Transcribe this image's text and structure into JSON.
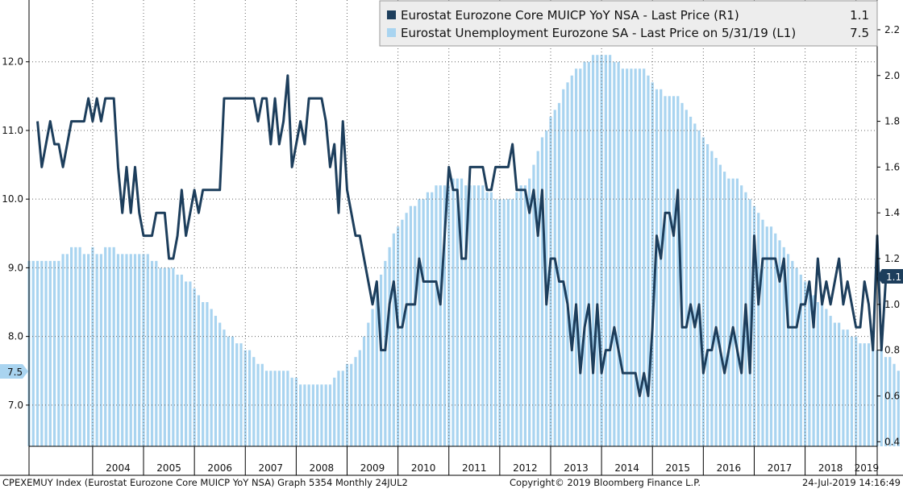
{
  "chart_data": {
    "type": "line+bar",
    "x_start": "2002-10",
    "x_end": "2019-06",
    "series": [
      {
        "name": "Eurostat Eurozone Core MUICP YoY NSA - Last Price (R1)",
        "type": "line",
        "axis": "right",
        "last_value": "1.1",
        "color": "#1d3e5c",
        "start": "2002-12",
        "values": [
          1.8,
          1.6,
          1.7,
          1.8,
          1.7,
          1.7,
          1.6,
          1.7,
          1.8,
          1.8,
          1.8,
          1.8,
          1.9,
          1.8,
          1.9,
          1.8,
          1.9,
          1.9,
          1.9,
          1.6,
          1.4,
          1.6,
          1.4,
          1.6,
          1.4,
          1.3,
          1.3,
          1.3,
          1.4,
          1.4,
          1.4,
          1.2,
          1.2,
          1.3,
          1.5,
          1.3,
          1.4,
          1.5,
          1.4,
          1.5,
          1.5,
          1.5,
          1.5,
          1.5,
          1.9,
          1.9,
          1.9,
          1.9,
          1.9,
          1.9,
          1.9,
          1.9,
          1.8,
          1.9,
          1.9,
          1.7,
          1.9,
          1.7,
          1.8,
          2.0,
          1.6,
          1.7,
          1.8,
          1.7,
          1.9,
          1.9,
          1.9,
          1.9,
          1.8,
          1.6,
          1.7,
          1.4,
          1.8,
          1.5,
          1.4,
          1.3,
          1.3,
          1.2,
          1.1,
          1.0,
          1.1,
          0.8,
          0.8,
          1.0,
          1.1,
          0.9,
          0.9,
          1.0,
          1.0,
          1.0,
          1.2,
          1.1,
          1.1,
          1.1,
          1.1,
          1.0,
          1.3,
          1.6,
          1.5,
          1.5,
          1.2,
          1.2,
          1.6,
          1.6,
          1.6,
          1.6,
          1.5,
          1.5,
          1.6,
          1.6,
          1.6,
          1.6,
          1.7,
          1.5,
          1.5,
          1.5,
          1.4,
          1.5,
          1.3,
          1.5,
          1.0,
          1.2,
          1.2,
          1.1,
          1.1,
          1.0,
          0.8,
          1.0,
          0.7,
          0.9,
          1.0,
          0.7,
          1.0,
          0.7,
          0.8,
          0.8,
          0.9,
          0.8,
          0.7,
          0.7,
          0.7,
          0.7,
          0.6,
          0.7,
          0.6,
          0.9,
          1.3,
          1.2,
          1.4,
          1.4,
          1.3,
          1.5,
          0.9,
          0.9,
          1.0,
          0.9,
          1.0,
          0.7,
          0.8,
          0.8,
          0.9,
          0.8,
          0.7,
          0.8,
          0.9,
          0.8,
          0.7,
          1.0,
          0.7,
          1.3,
          1.0,
          1.2,
          1.2,
          1.2,
          1.2,
          1.1,
          1.2,
          0.9,
          0.9,
          0.9,
          1.0,
          1.0,
          1.1,
          0.9,
          1.2,
          1.0,
          1.1,
          1.0,
          1.1,
          1.2,
          1.0,
          1.1,
          1.0,
          0.9,
          0.9,
          1.1,
          1.0,
          0.8,
          1.3,
          0.8,
          1.1
        ]
      },
      {
        "name": "Eurostat Unemployment Eurozone SA - Last Price on 5/31/19 (L1)",
        "type": "bar",
        "axis": "left",
        "last_value": "7.5",
        "color": "#a9d4f0",
        "start": "2002-10",
        "values": [
          9.1,
          9.1,
          9.1,
          9.1,
          9.1,
          9.1,
          9.1,
          9.1,
          9.2,
          9.2,
          9.3,
          9.3,
          9.3,
          9.2,
          9.2,
          9.3,
          9.2,
          9.2,
          9.3,
          9.3,
          9.3,
          9.2,
          9.2,
          9.2,
          9.2,
          9.2,
          9.2,
          9.2,
          9.2,
          9.1,
          9.1,
          9.0,
          9.0,
          9.0,
          9.0,
          8.9,
          8.9,
          8.8,
          8.8,
          8.7,
          8.6,
          8.5,
          8.5,
          8.4,
          8.3,
          8.2,
          8.1,
          8.0,
          8.0,
          7.9,
          7.9,
          7.8,
          7.8,
          7.7,
          7.6,
          7.6,
          7.5,
          7.5,
          7.5,
          7.5,
          7.5,
          7.5,
          7.4,
          7.4,
          7.3,
          7.3,
          7.3,
          7.3,
          7.3,
          7.3,
          7.3,
          7.3,
          7.4,
          7.5,
          7.5,
          7.6,
          7.6,
          7.7,
          7.8,
          8.0,
          8.2,
          8.4,
          8.7,
          8.9,
          9.1,
          9.3,
          9.5,
          9.6,
          9.7,
          9.8,
          9.9,
          9.9,
          10.0,
          10.0,
          10.1,
          10.1,
          10.2,
          10.2,
          10.2,
          10.2,
          10.3,
          10.3,
          10.3,
          10.2,
          10.2,
          10.2,
          10.2,
          10.2,
          10.1,
          10.1,
          10.0,
          10.0,
          10.0,
          10.0,
          10.0,
          10.1,
          10.2,
          10.2,
          10.3,
          10.5,
          10.7,
          10.9,
          11.0,
          11.2,
          11.3,
          11.4,
          11.6,
          11.7,
          11.8,
          11.9,
          11.9,
          12.0,
          12.0,
          12.1,
          12.1,
          12.1,
          12.1,
          12.1,
          12.0,
          12.0,
          11.9,
          11.9,
          11.9,
          11.9,
          11.9,
          11.9,
          11.8,
          11.7,
          11.6,
          11.6,
          11.5,
          11.5,
          11.5,
          11.5,
          11.4,
          11.3,
          11.2,
          11.1,
          11.0,
          10.9,
          10.8,
          10.7,
          10.6,
          10.5,
          10.4,
          10.3,
          10.3,
          10.3,
          10.2,
          10.1,
          10.0,
          9.9,
          9.8,
          9.7,
          9.6,
          9.6,
          9.5,
          9.4,
          9.3,
          9.2,
          9.1,
          9.0,
          8.9,
          8.8,
          8.7,
          8.6,
          8.5,
          8.5,
          8.4,
          8.3,
          8.2,
          8.2,
          8.1,
          8.1,
          8.0,
          8.0,
          7.9,
          7.9,
          7.9,
          7.9,
          7.8,
          7.8,
          7.7,
          7.7,
          7.6,
          7.5
        ]
      }
    ],
    "left_axis": {
      "ylim": [
        6.4,
        12.9
      ],
      "ticks": [
        "7.0",
        "8.0",
        "9.0",
        "10.0",
        "11.0",
        "12.0"
      ]
    },
    "right_axis": {
      "ylim": [
        0.38,
        2.33
      ],
      "ticks": [
        "0.4",
        "0.6",
        "0.8",
        "1.0",
        "1.2",
        "1.4",
        "1.6",
        "1.8",
        "2.0",
        "2.2"
      ]
    },
    "x_tick_labels": [
      "2004",
      "2005",
      "2006",
      "2007",
      "2008",
      "2009",
      "2010",
      "2011",
      "2012",
      "2013",
      "2014",
      "2015",
      "2016",
      "2017",
      "2018",
      "2019"
    ],
    "right_tag": "1.1",
    "left_tag": "7.5",
    "legend_position": "top-right",
    "grid": true
  },
  "footer": {
    "left": "CPEXEMUY Index (Eurostat Eurozone Core MUICP YoY NSA) Graph 5354  Monthly 24JUL2",
    "center": "Copyright© 2019 Bloomberg Finance L.P.",
    "right": "24-Jul-2019 14:16:49"
  }
}
